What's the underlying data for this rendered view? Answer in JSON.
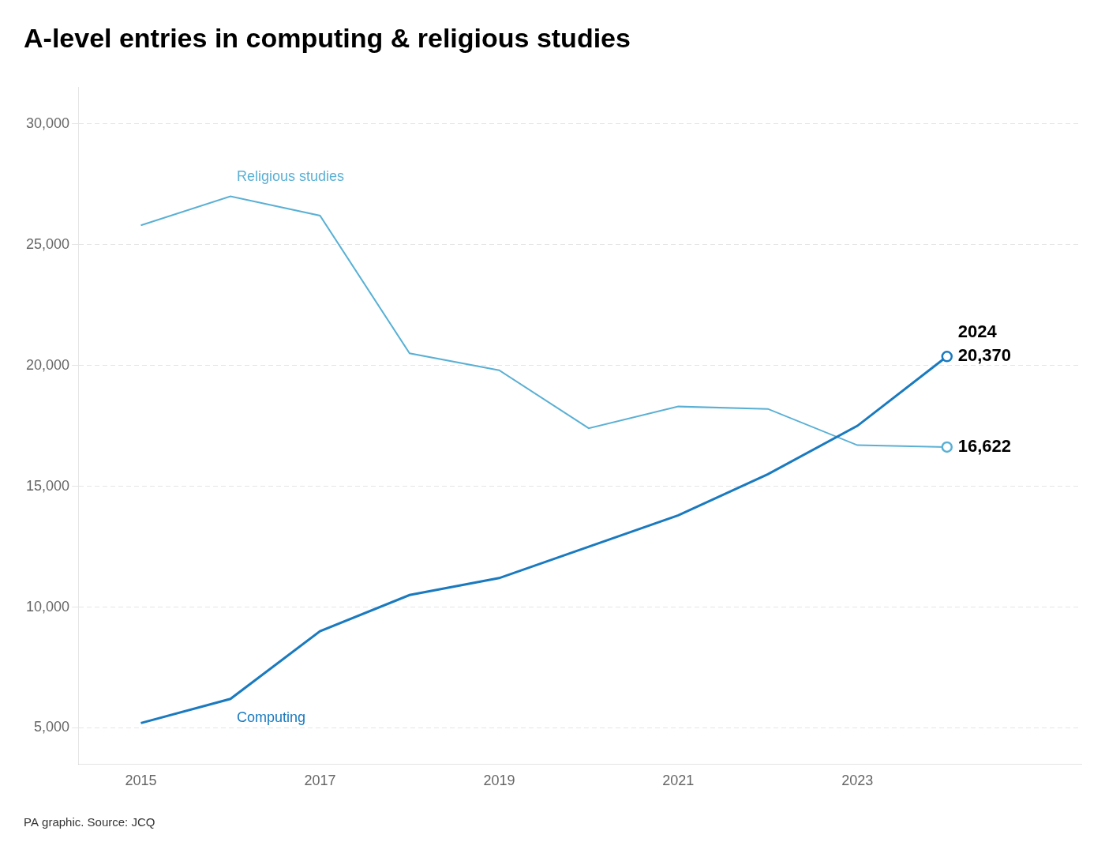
{
  "chart_data": {
    "type": "line",
    "title": "A-level entries in computing & religious studies",
    "source": "PA graphic. Source: JCQ",
    "x": [
      2015,
      2016,
      2017,
      2018,
      2019,
      2020,
      2021,
      2022,
      2023,
      2024
    ],
    "series": [
      {
        "name": "Computing",
        "color": "#1a7abf",
        "values": [
          5200,
          6200,
          9000,
          10500,
          11200,
          12500,
          13800,
          15500,
          17500,
          20370
        ]
      },
      {
        "name": "Religious studies",
        "color": "#5ab0d4",
        "values": [
          25800,
          27000,
          26200,
          20500,
          19800,
          17400,
          18300,
          18200,
          16700,
          16622
        ]
      }
    ],
    "xlim": [
      2014.3,
      2025.5
    ],
    "xticks": [
      2015,
      2017,
      2019,
      2021,
      2023
    ],
    "ylim": [
      3500,
      31500
    ],
    "yticks": [
      {
        "value": 5000,
        "label": "5,000"
      },
      {
        "value": 10000,
        "label": "10,000"
      },
      {
        "value": 15000,
        "label": "15,000"
      },
      {
        "value": 20000,
        "label": "20,000"
      },
      {
        "value": 25000,
        "label": "25,000"
      },
      {
        "value": 30000,
        "label": "30,000"
      }
    ],
    "annotations": [
      {
        "text": "2024",
        "x": 2024,
        "y": 20370
      },
      {
        "text": "20,370",
        "x": 2024,
        "y": 20370
      },
      {
        "text": "16,622",
        "x": 2024,
        "y": 16622
      }
    ],
    "grid": true
  }
}
